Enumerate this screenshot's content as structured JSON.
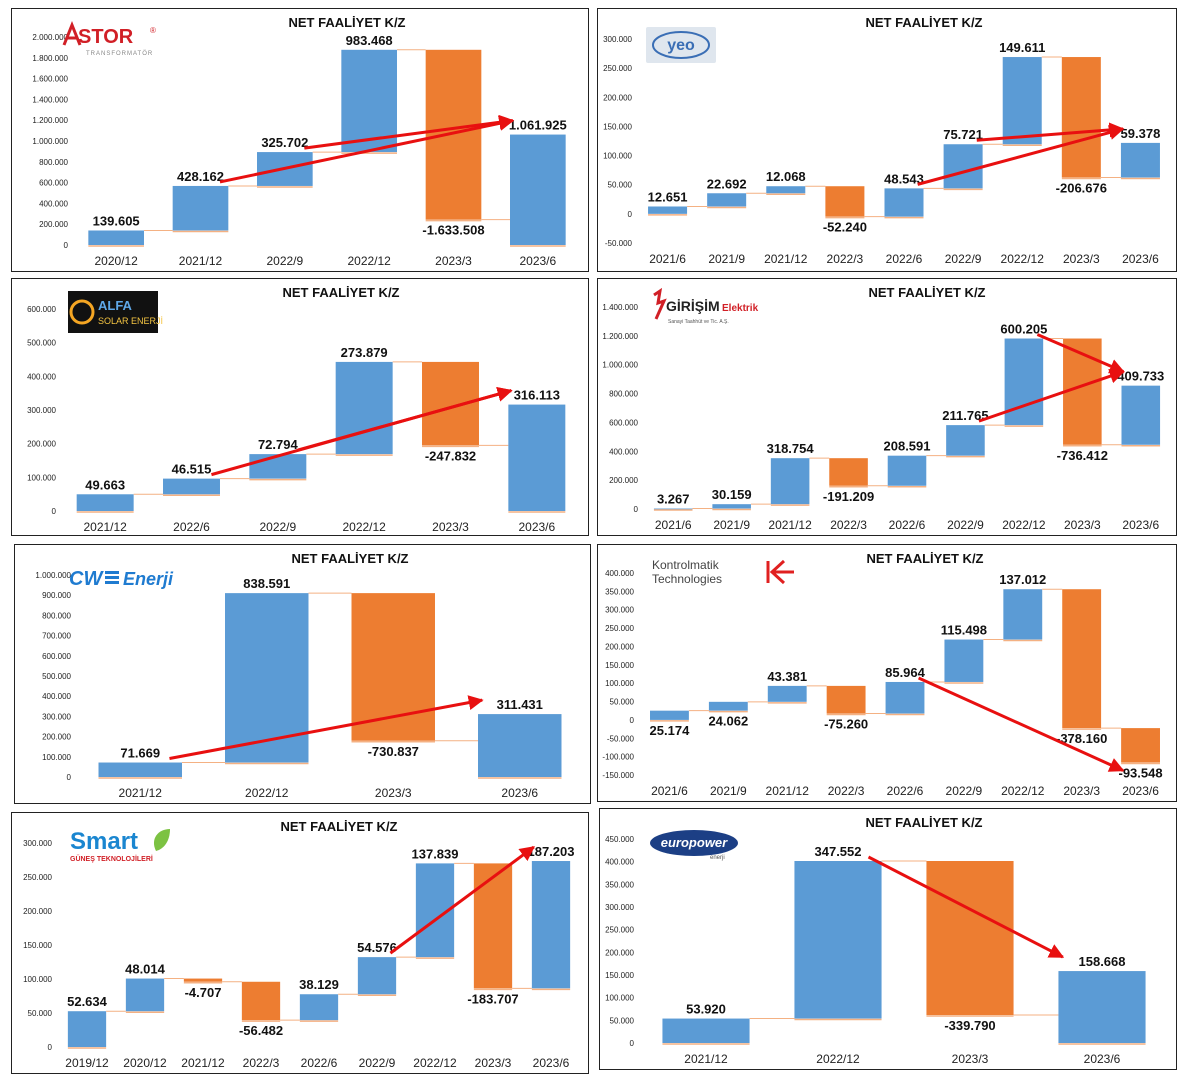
{
  "colors": {
    "increase": "#5b9bd5",
    "decrease": "#ed7d31",
    "arrow": "#e81010",
    "connector": "#f4b183"
  },
  "chart_data": [
    {
      "id": "astor",
      "type": "waterfall",
      "title": "NET FAALİYET K/Z",
      "logo": {
        "name": "ASTOR",
        "sub": "TRANSFORMATÖR",
        "mark": "®"
      },
      "ylim": [
        0,
        2000000
      ],
      "ystep": 200000,
      "yticks_zero_label": "0",
      "categories": [
        "2020/12",
        "2021/12",
        "2022/9",
        "2022/12",
        "2023/3",
        "2023/6"
      ],
      "values": [
        139605,
        428162,
        325702,
        983468,
        -1633508,
        1061925
      ],
      "kinds": [
        "delta",
        "delta",
        "delta",
        "delta",
        "delta",
        "total"
      ],
      "labels": [
        "139.605",
        "428.162",
        "325.702",
        "983.468",
        "-1.633.508",
        "1.061.925"
      ],
      "label_pos": [
        "above",
        "above",
        "above",
        "above",
        "below",
        "above"
      ],
      "arrows": [
        {
          "from": 1,
          "to": 5
        },
        {
          "from": 2,
          "to": 5
        }
      ]
    },
    {
      "id": "yeo",
      "type": "waterfall",
      "title": "NET FAALİYET K/Z",
      "logo": {
        "name": "yeo"
      },
      "ylim": [
        -50000,
        300000
      ],
      "ystep": 50000,
      "yticks_zero_label": "0",
      "categories": [
        "2021/6",
        "2021/9",
        "2021/12",
        "2022/3",
        "2022/6",
        "2022/9",
        "2022/12",
        "2023/3",
        "2023/6"
      ],
      "values": [
        12651,
        22692,
        12068,
        -52240,
        48543,
        75721,
        149611,
        -206676,
        59378
      ],
      "kinds": [
        "delta",
        "delta",
        "delta",
        "delta",
        "delta",
        "delta",
        "delta",
        "delta",
        "delta"
      ],
      "labels": [
        "12.651",
        "22.692",
        "12.068",
        "-52.240",
        "48.543",
        "75.721",
        "149.611",
        "-206.676",
        "59.378"
      ],
      "label_pos": [
        "above",
        "above",
        "above",
        "below",
        "above",
        "above",
        "above",
        "below",
        "above"
      ],
      "arrows": [
        {
          "from": 4,
          "to": 8
        },
        {
          "from": 5,
          "to": 8
        }
      ]
    },
    {
      "id": "alfa",
      "type": "waterfall",
      "title": "NET FAALİYET K/Z",
      "logo": {
        "name": "ALFA",
        "sub": "SOLAR ENERJİ"
      },
      "ylim": [
        0,
        600000
      ],
      "ystep": 100000,
      "yticks_zero_label": "0",
      "categories": [
        "2021/12",
        "2022/6",
        "2022/9",
        "2022/12",
        "2023/3",
        "2023/6"
      ],
      "values": [
        49663,
        46515,
        72794,
        273879,
        -247832,
        316113
      ],
      "kinds": [
        "delta",
        "delta",
        "delta",
        "delta",
        "delta",
        "total"
      ],
      "labels": [
        "49.663",
        "46.515",
        "72.794",
        "273.879",
        "-247.832",
        "316.113"
      ],
      "label_pos": [
        "above",
        "above",
        "above",
        "above",
        "below",
        "above"
      ],
      "arrows": [
        {
          "from": 1,
          "to": 5
        },
        {
          "from": 2,
          "to": 5
        }
      ]
    },
    {
      "id": "girisim",
      "type": "waterfall",
      "title": "NET FAALİYET K/Z",
      "logo": {
        "name": "GİRİŞİM",
        "sub": "Elektrik",
        "small": "Sanayi Taahhüt ve Tic. A.Ş."
      },
      "ylim": [
        0,
        1400000
      ],
      "ystep": 200000,
      "yticks_zero_label": "0",
      "categories": [
        "2021/6",
        "2021/9",
        "2021/12",
        "2022/3",
        "2022/6",
        "2022/9",
        "2022/12",
        "2023/3",
        "2023/6"
      ],
      "values": [
        3267,
        30159,
        318754,
        -191209,
        208591,
        211765,
        600205,
        -736412,
        409733
      ],
      "kinds": [
        "delta",
        "delta",
        "delta",
        "delta",
        "delta",
        "delta",
        "delta",
        "delta",
        "delta"
      ],
      "labels": [
        "3.267",
        "30.159",
        "318.754",
        "-191.209",
        "208.591",
        "211.765",
        "600.205",
        "-736.412",
        "409.733"
      ],
      "label_pos": [
        "above",
        "above",
        "above",
        "below",
        "above",
        "above",
        "above",
        "below",
        "above"
      ],
      "arrows": [
        {
          "from": 5,
          "to": 8
        },
        {
          "from": 6,
          "to": 8
        }
      ]
    },
    {
      "id": "cw",
      "type": "waterfall",
      "title": "NET FAALİYET K/Z",
      "logo": {
        "name": "CW",
        "sub": "Enerji"
      },
      "ylim": [
        0,
        1000000
      ],
      "ystep": 100000,
      "yticks_zero_label": "0",
      "categories": [
        "2021/12",
        "2022/12",
        "2023/3",
        "2023/6"
      ],
      "values": [
        71669,
        838591,
        -730837,
        311431
      ],
      "kinds": [
        "delta",
        "delta",
        "delta",
        "total"
      ],
      "labels": [
        "71.669",
        "838.591",
        "-730.837",
        "311.431"
      ],
      "label_pos": [
        "above",
        "above",
        "below",
        "above"
      ],
      "arrows": [
        {
          "from": 0,
          "to": 3
        }
      ]
    },
    {
      "id": "kontrolmatik",
      "type": "waterfall",
      "title": "NET FAALİYET K/Z",
      "logo": {
        "name": "Kontrolmatik",
        "sub": "Technologies"
      },
      "ylim": [
        -150000,
        400000
      ],
      "ystep": 50000,
      "yticks_zero_label": "0",
      "categories": [
        "2021/6",
        "2021/9",
        "2021/12",
        "2022/3",
        "2022/6",
        "2022/9",
        "2022/12",
        "2023/3",
        "2023/6"
      ],
      "values": [
        25174,
        24062,
        43381,
        -75260,
        85964,
        115498,
        137012,
        -378160,
        -93548
      ],
      "kinds": [
        "delta",
        "delta",
        "delta",
        "delta",
        "delta",
        "delta",
        "delta",
        "delta",
        "delta"
      ],
      "labels": [
        "25.174",
        "24.062",
        "43.381",
        "-75.260",
        "85.964",
        "115.498",
        "137.012",
        "-378.160",
        "-93.548"
      ],
      "label_pos": [
        "below",
        "below",
        "above",
        "below",
        "above",
        "above",
        "above",
        "below",
        "below"
      ],
      "arrows": [
        {
          "from": 4,
          "to": 8
        }
      ]
    },
    {
      "id": "smart",
      "type": "waterfall",
      "title": "NET FAALİYET K/Z",
      "logo": {
        "name": "Smart",
        "sub": "GÜNEŞ TEKNOLOJİLERİ"
      },
      "ylim": [
        0,
        300000
      ],
      "ystep": 50000,
      "yticks_zero_label": "0",
      "categories": [
        "2019/12",
        "2020/12",
        "2021/12",
        "2022/3",
        "2022/6",
        "2022/9",
        "2022/12",
        "2023/3",
        "2023/6"
      ],
      "values": [
        52634,
        48014,
        -4707,
        -56482,
        38129,
        54576,
        137839,
        -183707,
        187203
      ],
      "kinds": [
        "delta",
        "delta",
        "delta",
        "delta",
        "delta",
        "delta",
        "delta",
        "delta",
        "delta"
      ],
      "labels": [
        "52.634",
        "48.014",
        "-4.707",
        "-56.482",
        "38.129",
        "54.576",
        "137.839",
        "-183.707",
        "187.203"
      ],
      "label_pos": [
        "above",
        "above",
        "below",
        "below",
        "above",
        "above",
        "above",
        "below",
        "above"
      ],
      "arrows": [
        {
          "from": 5,
          "to": 8
        }
      ]
    },
    {
      "id": "europower",
      "type": "waterfall",
      "title": "NET FAALİYET K/Z",
      "logo": {
        "name": "europower",
        "sub": "enerji"
      },
      "ylim": [
        0,
        450000
      ],
      "ystep": 50000,
      "yticks_zero_label": "0",
      "categories": [
        "2021/12",
        "2022/12",
        "2023/3",
        "2023/6"
      ],
      "values": [
        53920,
        347552,
        -339790,
        158668
      ],
      "kinds": [
        "delta",
        "delta",
        "delta",
        "total"
      ],
      "labels": [
        "53.920",
        "347.552",
        "-339.790",
        "158.668"
      ],
      "label_pos": [
        "above",
        "above",
        "below",
        "above"
      ],
      "arrows": [
        {
          "from": 1,
          "to": 3
        }
      ]
    }
  ]
}
